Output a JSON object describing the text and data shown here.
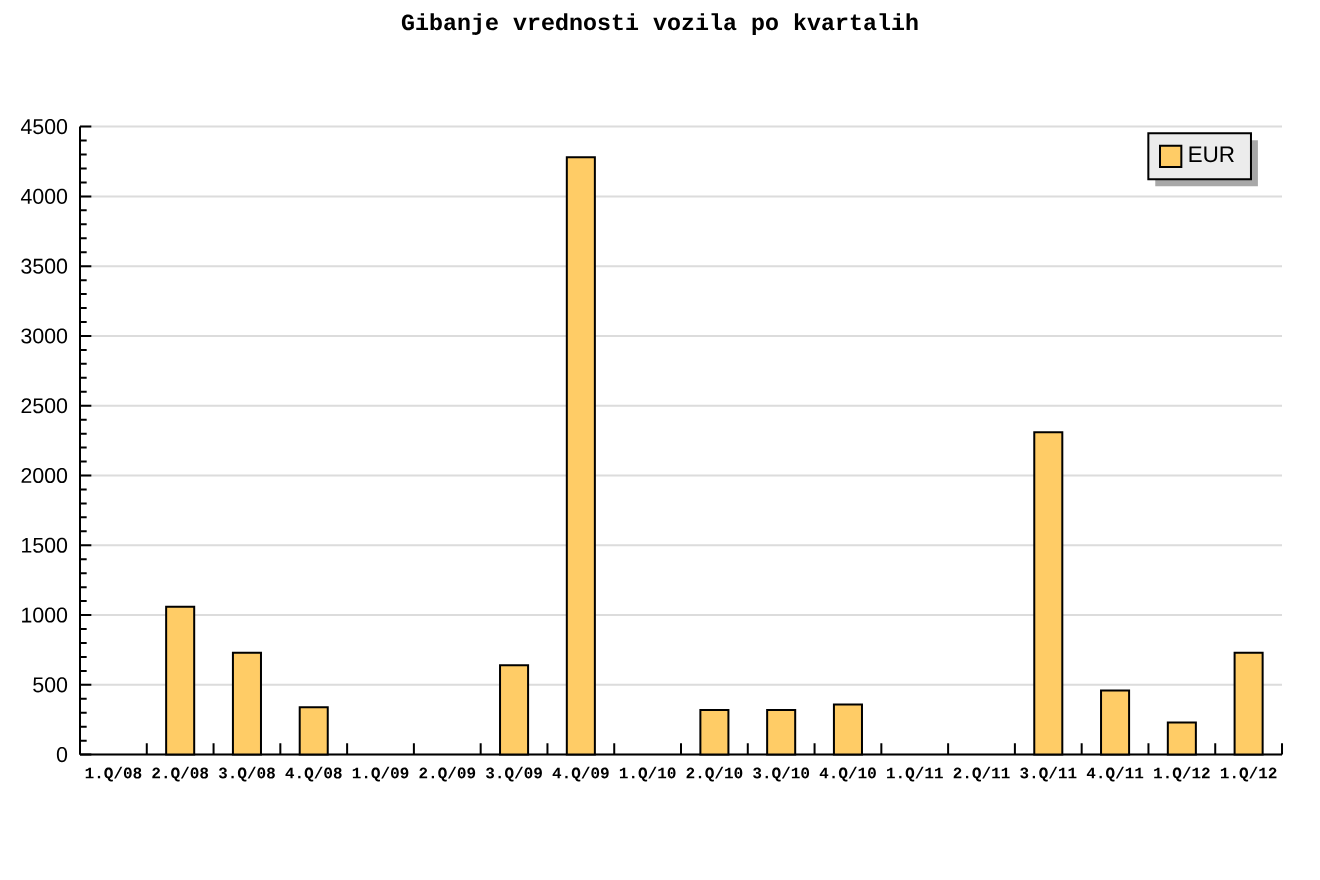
{
  "chart_data": {
    "type": "bar",
    "title": "Gibanje vrednosti vozila po kvartalih",
    "categories": [
      "1.Q/08",
      "2.Q/08",
      "3.Q/08",
      "4.Q/08",
      "1.Q/09",
      "2.Q/09",
      "3.Q/09",
      "4.Q/09",
      "1.Q/10",
      "2.Q/10",
      "3.Q/10",
      "4.Q/10",
      "1.Q/11",
      "2.Q/11",
      "3.Q/11",
      "4.Q/11",
      "1.Q/12",
      "1.Q/12"
    ],
    "series": [
      {
        "name": "EUR",
        "color": "#ffcc66",
        "values": [
          null,
          1060,
          730,
          340,
          null,
          null,
          640,
          4280,
          null,
          320,
          320,
          360,
          null,
          null,
          2310,
          460,
          230,
          730
        ]
      }
    ],
    "ylim": [
      0,
      4500
    ],
    "yticks": [
      0,
      500,
      1000,
      1500,
      2000,
      2500,
      3000,
      3500,
      4000,
      4500
    ],
    "grid": "y",
    "legend": "top right"
  }
}
